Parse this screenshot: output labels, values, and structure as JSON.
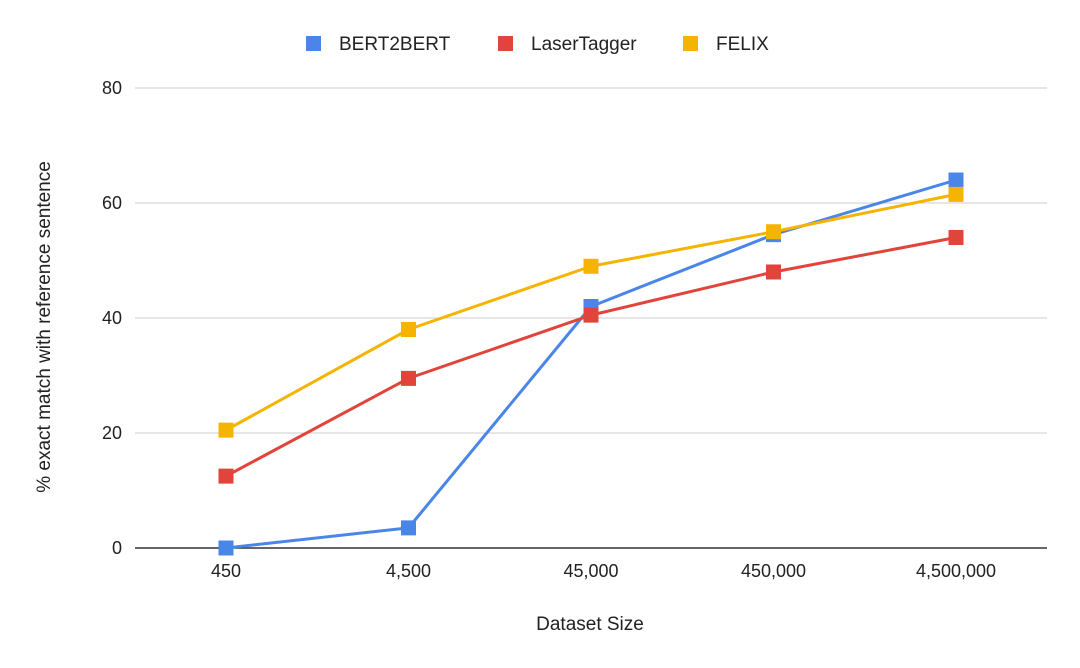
{
  "chart_data": {
    "type": "line",
    "title": "",
    "xlabel": "Dataset Size",
    "ylabel": "% exact match with reference sentence",
    "categories": [
      "450",
      "4,500",
      "45,000",
      "450,000",
      "4,500,000"
    ],
    "ylim": [
      0,
      80
    ],
    "yticks": [
      "0",
      "20",
      "40",
      "60",
      "80"
    ],
    "grid": true,
    "legend_position": "top",
    "series": [
      {
        "name": "BERT2BERT",
        "color": "#4a86e8",
        "values": [
          0,
          3.5,
          42,
          54.5,
          64
        ]
      },
      {
        "name": "LaserTagger",
        "color": "#e0443a",
        "values": [
          12.5,
          29.5,
          40.5,
          48,
          54
        ]
      },
      {
        "name": "FELIX",
        "color": "#f4b400",
        "values": [
          20.5,
          38,
          49,
          55,
          61.5
        ]
      }
    ]
  }
}
